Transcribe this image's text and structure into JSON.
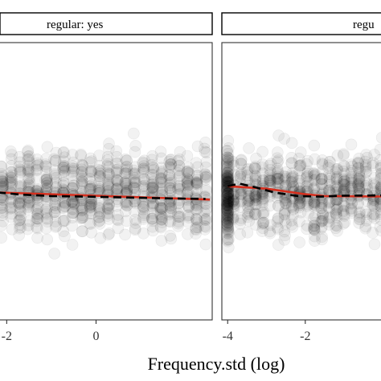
{
  "chart_data": {
    "type": "scatter",
    "xlabel": "Frequency.std (log)",
    "ylabel": "",
    "facets": [
      {
        "strip_label": "regular: yes",
        "xlim": [
          -2.15,
          2.6
        ],
        "x_ticks": [
          {
            "value": -2,
            "label": "-2"
          },
          {
            "value": 0,
            "label": "0"
          }
        ],
        "linear_fit": [
          [
            -2.2,
            0.12
          ],
          [
            2.55,
            -0.12
          ]
        ],
        "ci_band_end": [
          [
            1.7,
            -0.04,
            -0.12
          ],
          [
            2.55,
            -0.05,
            -0.2
          ]
        ],
        "loess_fit": [
          [
            -2.2,
            0.12
          ],
          [
            -1.7,
            0.05
          ],
          [
            -1.0,
            0.0
          ],
          [
            -0.2,
            -0.02
          ],
          [
            0.7,
            -0.05
          ],
          [
            1.6,
            -0.08
          ],
          [
            2.45,
            -0.1
          ]
        ]
      },
      {
        "strip_label": "regu",
        "xlim": [
          -4.15,
          0.2
        ],
        "x_ticks": [
          {
            "value": -4,
            "label": "-4"
          },
          {
            "value": -2,
            "label": "-2"
          }
        ],
        "linear_fit": [
          [
            -4.0,
            0.33
          ],
          [
            -3.0,
            0.25
          ],
          [
            -2.0,
            0.06
          ],
          [
            -1.5,
            0.0
          ],
          [
            0.2,
            -0.02
          ]
        ],
        "loess_fit": [
          [
            -4.0,
            0.33
          ],
          [
            -3.7,
            0.42
          ],
          [
            -3.3,
            0.3
          ],
          [
            -2.8,
            0.12
          ],
          [
            -2.2,
            0.0
          ],
          [
            -1.6,
            -0.02
          ],
          [
            -1.1,
            0.01
          ],
          [
            0.2,
            0.02
          ]
        ]
      }
    ],
    "ylim": [
      -4.2,
      5.2
    ],
    "colors": {
      "points": "#000000",
      "linear_fit": "#d7301f",
      "loess_fit": "#000000",
      "ci_band": "#9a9a9a"
    }
  }
}
